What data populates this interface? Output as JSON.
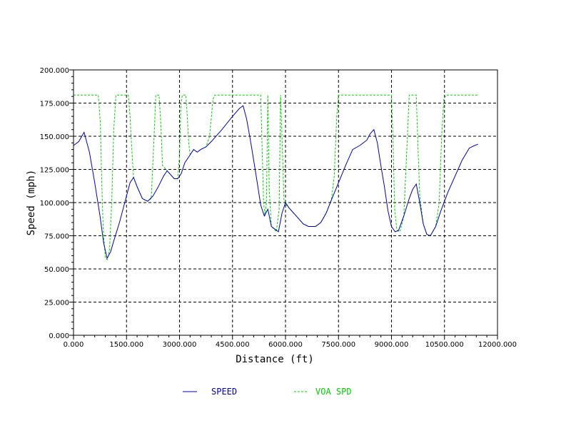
{
  "chart_data": {
    "type": "line",
    "xlabel": "Distance (ft)",
    "ylabel": "Speed (mph)",
    "xlim": [
      0,
      12000
    ],
    "ylim": [
      0,
      200
    ],
    "grid": true,
    "legend_position": "bottom",
    "x_ticks": [
      {
        "value": 0,
        "label": "0.000"
      },
      {
        "value": 1500,
        "label": "1500.000"
      },
      {
        "value": 3000,
        "label": "3000.000"
      },
      {
        "value": 4500,
        "label": "4500.000"
      },
      {
        "value": 6000,
        "label": "6000.000"
      },
      {
        "value": 7500,
        "label": "7500.000"
      },
      {
        "value": 9000,
        "label": "9000.000"
      },
      {
        "value": 10500,
        "label": "10500.000"
      },
      {
        "value": 12000,
        "label": "12000.000"
      }
    ],
    "y_ticks": [
      {
        "value": 0,
        "label": "0.000"
      },
      {
        "value": 25,
        "label": "25.000"
      },
      {
        "value": 50,
        "label": "50.000"
      },
      {
        "value": 75,
        "label": "75.000"
      },
      {
        "value": 100,
        "label": "100.000"
      },
      {
        "value": 125,
        "label": "125.000"
      },
      {
        "value": 150,
        "label": "150.000"
      },
      {
        "value": 175,
        "label": "175.000"
      },
      {
        "value": 200,
        "label": "200.000"
      }
    ],
    "series": [
      {
        "name": "SPEED",
        "color": "#0000b0",
        "dash": "solid",
        "points": [
          [
            0,
            143
          ],
          [
            150,
            146
          ],
          [
            300,
            153
          ],
          [
            450,
            138
          ],
          [
            600,
            115
          ],
          [
            750,
            90
          ],
          [
            850,
            70
          ],
          [
            950,
            58
          ],
          [
            1050,
            63
          ],
          [
            1150,
            72
          ],
          [
            1300,
            85
          ],
          [
            1450,
            100
          ],
          [
            1600,
            115
          ],
          [
            1700,
            119
          ],
          [
            1800,
            112
          ],
          [
            1950,
            103
          ],
          [
            2100,
            101
          ],
          [
            2250,
            105
          ],
          [
            2400,
            112
          ],
          [
            2550,
            120
          ],
          [
            2650,
            124
          ],
          [
            2750,
            121
          ],
          [
            2850,
            118
          ],
          [
            2950,
            118
          ],
          [
            3050,
            122
          ],
          [
            3150,
            130
          ],
          [
            3300,
            136
          ],
          [
            3400,
            140
          ],
          [
            3500,
            138
          ],
          [
            3600,
            140
          ],
          [
            3750,
            142
          ],
          [
            3900,
            146
          ],
          [
            4200,
            155
          ],
          [
            4500,
            165
          ],
          [
            4700,
            171
          ],
          [
            4800,
            173
          ],
          [
            4900,
            163
          ],
          [
            5000,
            148
          ],
          [
            5100,
            132
          ],
          [
            5200,
            115
          ],
          [
            5300,
            98
          ],
          [
            5400,
            90
          ],
          [
            5500,
            95
          ],
          [
            5600,
            82
          ],
          [
            5700,
            80
          ],
          [
            5800,
            78
          ],
          [
            5900,
            92
          ],
          [
            6000,
            100
          ],
          [
            6100,
            96
          ],
          [
            6300,
            90
          ],
          [
            6500,
            84
          ],
          [
            6650,
            82
          ],
          [
            6850,
            82
          ],
          [
            7000,
            85
          ],
          [
            7150,
            92
          ],
          [
            7300,
            102
          ],
          [
            7500,
            115
          ],
          [
            7700,
            128
          ],
          [
            7900,
            140
          ],
          [
            8100,
            143
          ],
          [
            8300,
            147
          ],
          [
            8400,
            152
          ],
          [
            8500,
            155
          ],
          [
            8600,
            145
          ],
          [
            8700,
            128
          ],
          [
            8800,
            112
          ],
          [
            8900,
            94
          ],
          [
            9000,
            82
          ],
          [
            9100,
            78
          ],
          [
            9200,
            79
          ],
          [
            9350,
            90
          ],
          [
            9500,
            103
          ],
          [
            9600,
            110
          ],
          [
            9700,
            114
          ],
          [
            9800,
            100
          ],
          [
            9900,
            84
          ],
          [
            10000,
            76
          ],
          [
            10100,
            75
          ],
          [
            10250,
            82
          ],
          [
            10400,
            94
          ],
          [
            10600,
            108
          ],
          [
            10800,
            120
          ],
          [
            11000,
            132
          ],
          [
            11200,
            141
          ],
          [
            11350,
            143
          ],
          [
            11450,
            144
          ]
        ]
      },
      {
        "name": "VOA SPD",
        "color": "#00d000",
        "dash": "dashed",
        "points": [
          [
            0,
            181
          ],
          [
            700,
            181
          ],
          [
            760,
            160
          ],
          [
            800,
            115
          ],
          [
            840,
            80
          ],
          [
            900,
            58
          ],
          [
            960,
            57
          ],
          [
            1020,
            65
          ],
          [
            1080,
            100
          ],
          [
            1140,
            155
          ],
          [
            1200,
            181
          ],
          [
            1550,
            181
          ],
          [
            1600,
            165
          ],
          [
            1650,
            140
          ],
          [
            1700,
            119
          ],
          [
            1800,
            112
          ],
          [
            1950,
            103
          ],
          [
            2100,
            101
          ],
          [
            2200,
            103
          ],
          [
            2280,
            150
          ],
          [
            2330,
            181
          ],
          [
            2420,
            181
          ],
          [
            2470,
            160
          ],
          [
            2520,
            128
          ],
          [
            2650,
            124
          ],
          [
            2750,
            121
          ],
          [
            2850,
            118
          ],
          [
            2950,
            118
          ],
          [
            3000,
            135
          ],
          [
            3040,
            175
          ],
          [
            3080,
            181
          ],
          [
            3180,
            181
          ],
          [
            3220,
            165
          ],
          [
            3260,
            145
          ],
          [
            3300,
            136
          ],
          [
            3400,
            140
          ],
          [
            3500,
            138
          ],
          [
            3600,
            140
          ],
          [
            3750,
            142
          ],
          [
            3850,
            150
          ],
          [
            3950,
            178
          ],
          [
            4000,
            181
          ],
          [
            5300,
            181
          ],
          [
            5340,
            140
          ],
          [
            5380,
            100
          ],
          [
            5420,
            90
          ],
          [
            5460,
            100
          ],
          [
            5500,
            181
          ],
          [
            5540,
            110
          ],
          [
            5600,
            82
          ],
          [
            5680,
            80
          ],
          [
            5740,
            78
          ],
          [
            5820,
            95
          ],
          [
            5860,
            181
          ],
          [
            5900,
            150
          ],
          [
            5960,
            100
          ],
          [
            6100,
            96
          ],
          [
            6300,
            90
          ],
          [
            6500,
            84
          ],
          [
            6650,
            82
          ],
          [
            6850,
            82
          ],
          [
            7000,
            85
          ],
          [
            7150,
            92
          ],
          [
            7300,
            102
          ],
          [
            7380,
            120
          ],
          [
            7450,
            165
          ],
          [
            7500,
            181
          ],
          [
            9000,
            181
          ],
          [
            9040,
            150
          ],
          [
            9090,
            95
          ],
          [
            9150,
            80
          ],
          [
            9200,
            78
          ],
          [
            9250,
            79
          ],
          [
            9350,
            90
          ],
          [
            9450,
            150
          ],
          [
            9500,
            181
          ],
          [
            9700,
            181
          ],
          [
            9740,
            150
          ],
          [
            9800,
            105
          ],
          [
            9900,
            84
          ],
          [
            10000,
            76
          ],
          [
            10100,
            75
          ],
          [
            10250,
            82
          ],
          [
            10350,
            100
          ],
          [
            10420,
            150
          ],
          [
            10480,
            178
          ],
          [
            10550,
            181
          ],
          [
            11450,
            181
          ]
        ]
      }
    ]
  }
}
